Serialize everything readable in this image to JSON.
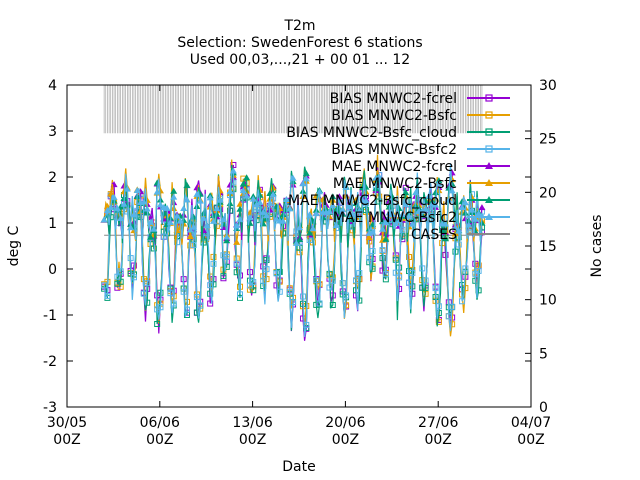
{
  "chart_data": {
    "type": "line",
    "title_lines": [
      "T2m",
      "Selection: SwedenForest      6 stations",
      "Used 00,03,...,21 + 00 01 ... 12"
    ],
    "xlabel": "Date",
    "ylabel": "deg C",
    "y2label": "No cases",
    "ylim": [
      -3,
      4
    ],
    "y2lim": [
      0,
      30
    ],
    "yticks": [
      "-3",
      "-2",
      "-1",
      "0",
      "1",
      "2",
      "3",
      "4"
    ],
    "y2ticks": [
      "0",
      "5",
      "10",
      "15",
      "20",
      "25",
      "30"
    ],
    "xticks": [
      {
        "line1": "30/05",
        "line2": "00Z"
      },
      {
        "line1": "06/06",
        "line2": "00Z"
      },
      {
        "line1": "13/06",
        "line2": "00Z"
      },
      {
        "line1": "20/06",
        "line2": "00Z"
      },
      {
        "line1": "27/06",
        "line2": "00Z"
      },
      {
        "line1": "04/07",
        "line2": "00Z"
      }
    ],
    "xlim_days": [
      0,
      35
    ],
    "data_start_day": 2.8,
    "data_end_day": 31.4,
    "step_hours": 3,
    "cases_value": 16,
    "legend_placement": "top-right",
    "series": [
      {
        "name": "BIAS MNWC2-fcrel",
        "color": "#9400d3",
        "marker": "square",
        "seed": 11,
        "bias_offset": 0.0
      },
      {
        "name": "BIAS MNWC2-Bsfc",
        "color": "#e69f00",
        "marker": "square",
        "seed": 23,
        "bias_offset": 0.05
      },
      {
        "name": "BIAS MNWC2-Bsfc_cloud",
        "color": "#009e73",
        "marker": "square",
        "seed": 37,
        "bias_offset": -0.05
      },
      {
        "name": "BIAS MNWC-Bsfc2",
        "color": "#56b4e9",
        "marker": "square",
        "seed": 53,
        "bias_offset": 0.02
      },
      {
        "name": "MAE MNWC2-fcrel",
        "color": "#9400d3",
        "marker": "triangle",
        "seed": 71,
        "mae": true
      },
      {
        "name": "MAE MNWC2-Bsfc",
        "color": "#e69f00",
        "marker": "triangle",
        "seed": 83,
        "mae": true
      },
      {
        "name": "MAE MNWC2-Bsfc_cloud",
        "color": "#009e73",
        "marker": "triangle",
        "seed": 97,
        "mae": true
      },
      {
        "name": "MAE MNWC-Bsfc2",
        "color": "#56b4e9",
        "marker": "triangle",
        "seed": 109,
        "mae": true
      }
    ],
    "legend_visible": [
      {
        "text": "BIAS MNWC2-fcrel",
        "color": "#9400d3",
        "marker": "square"
      },
      {
        "text": "BIAS MNWC2-Bsfc",
        "color": "#e69f00",
        "marker": "square"
      },
      {
        "text": "BIAS MNWC2-Bsfc_cloud",
        "color": "#009e73",
        "marker": "square"
      },
      {
        "text": "BIAS MNWC-Bsfc2",
        "color": "#56b4e9",
        "marker": "square"
      },
      {
        "text": "MAE MNWC2-fcrel",
        "color": "#9400d3",
        "marker": "triangle"
      },
      {
        "text": "MAE MNWC2-Bsfc",
        "color": "#e69f00",
        "marker": "triangle"
      },
      {
        "text": "MAE MNWC2-Bsfc_cloud",
        "color": "#009e73",
        "marker": "triangle"
      },
      {
        "text": "MAE MNWC-Bsfc2",
        "color": "#56b4e9",
        "marker": "triangle"
      },
      {
        "text": "CASES",
        "color": "#888888",
        "marker": "none"
      }
    ]
  }
}
